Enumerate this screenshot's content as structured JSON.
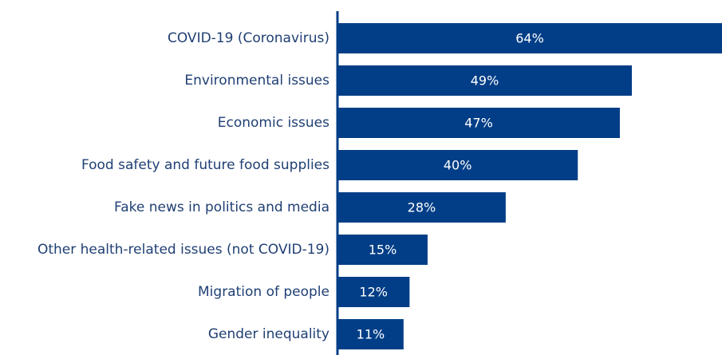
{
  "chart_data": {
    "type": "bar",
    "orientation": "horizontal",
    "categories": [
      "COVID-19 (Coronavirus)",
      "Environmental issues",
      "Economic issues",
      "Food safety and future food supplies",
      "Fake news in politics and media",
      "Other health-related issues (not COVID-19)",
      "Migration of people",
      "Gender inequality"
    ],
    "values": [
      64,
      49,
      47,
      40,
      28,
      15,
      12,
      11
    ],
    "value_labels": [
      "64%",
      "49%",
      "47%",
      "40%",
      "28%",
      "15%",
      "12%",
      "11%"
    ],
    "unit": "%",
    "xlim": [
      0,
      64
    ],
    "grid": false,
    "legend": "none",
    "colors": {
      "bar": "#023e87",
      "axis": "#023e87",
      "category_text": "#1f3f73",
      "value_text": "#ffffff"
    }
  }
}
